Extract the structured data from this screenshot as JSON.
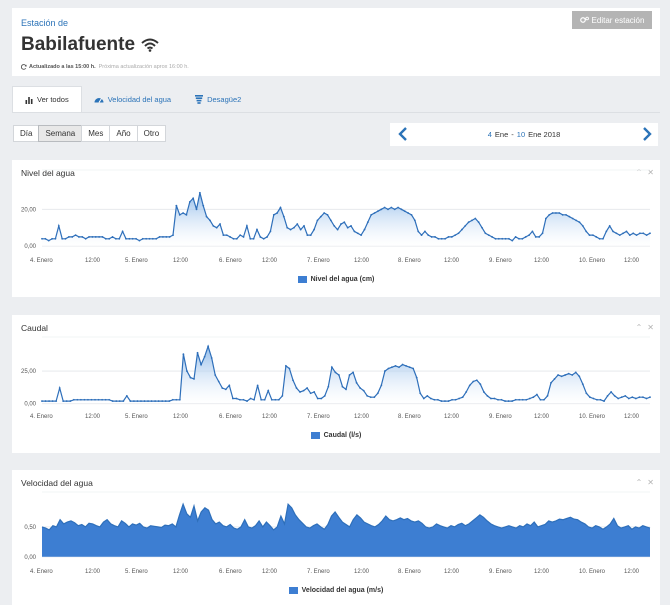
{
  "header": {
    "station_label": "Estación de",
    "station_name": "Babilafuente",
    "updated_text": "Actualizado a las 15:00 h.",
    "next_update_text": "Próxima actualización aprox 16:00 h.",
    "edit_button_label": "Editar estación"
  },
  "tabs": [
    {
      "label": "Ver todos",
      "icon": "bar-chart-icon",
      "active": true
    },
    {
      "label": "Velocidad del agua",
      "icon": "gauge-icon",
      "active": false
    },
    {
      "label": "Desagüe2",
      "icon": "drain-icon",
      "active": false
    }
  ],
  "periods": [
    {
      "label": "Día",
      "active": false
    },
    {
      "label": "Semana",
      "active": true
    },
    {
      "label": "Mes",
      "active": false
    },
    {
      "label": "Año",
      "active": false
    },
    {
      "label": "Otro",
      "active": false
    }
  ],
  "date_range": {
    "start_day": "4",
    "start_month": "Ene",
    "separator": "-",
    "end_day": "10",
    "end_month_year": "Ene 2018"
  },
  "colors": {
    "accent": "#2b73b8",
    "series_line": "#2e6fba",
    "series_fill": "#3d7ed2",
    "panel_bg": "#ffffff",
    "page_bg": "#eceef1"
  },
  "chart_data": [
    {
      "type": "area",
      "title": "Nivel del agua",
      "series_name": "Nivel del agua (cm)",
      "x_labels": [
        "4. Enero",
        "12:00",
        "5. Enero",
        "12:00",
        "6. Enero",
        "12:00",
        "7. Enero",
        "12:00",
        "8. Enero",
        "12:00",
        "9. Enero",
        "12:00",
        "10. Enero",
        "12:00"
      ],
      "y_ticks": [
        "0,00",
        "20,00"
      ],
      "y_tick_values": [
        0,
        20
      ],
      "ylim": [
        -1,
        37
      ],
      "fill_style": "gradient",
      "markers": true,
      "values": [
        4,
        4,
        3,
        4,
        4,
        11,
        4,
        4,
        5,
        5,
        6,
        5,
        5,
        4,
        5,
        5,
        5,
        5,
        5,
        4,
        4,
        5,
        4,
        4,
        8,
        4,
        4,
        4,
        4,
        3,
        4,
        4,
        4,
        4,
        4,
        5,
        5,
        5,
        5,
        6,
        22,
        17,
        18,
        17,
        24,
        26,
        20,
        29,
        22,
        16,
        14,
        11,
        10,
        12,
        6,
        6,
        5,
        4,
        4,
        6,
        5,
        11,
        4,
        4,
        9,
        5,
        4,
        5,
        8,
        17,
        18,
        21,
        16,
        10,
        9,
        10,
        12,
        9,
        11,
        6,
        6,
        9,
        14,
        16,
        18,
        17,
        14,
        11,
        9,
        12,
        13,
        10,
        11,
        8,
        7,
        6,
        9,
        13,
        17,
        18,
        19,
        20,
        21,
        20,
        21,
        20,
        21,
        20,
        19,
        18,
        17,
        14,
        8,
        6,
        8,
        6,
        5,
        5,
        4,
        4,
        4,
        5,
        5,
        6,
        7,
        9,
        11,
        13,
        14,
        15,
        13,
        10,
        7,
        6,
        5,
        4,
        4,
        4,
        4,
        4,
        3,
        5,
        4,
        4,
        5,
        6,
        8,
        5,
        5,
        7,
        15,
        17,
        18,
        18,
        18,
        17,
        17,
        16,
        15,
        14,
        13,
        11,
        8,
        6,
        6,
        5,
        4,
        4,
        8,
        11,
        8,
        7,
        6,
        7,
        8,
        6,
        7,
        6,
        7,
        7,
        6,
        7
      ]
    },
    {
      "type": "area",
      "title": "Caudal",
      "series_name": "Caudal (l/s)",
      "x_labels": [
        "4. Enero",
        "12:00",
        "5. Enero",
        "12:00",
        "6. Enero",
        "12:00",
        "7. Enero",
        "12:00",
        "8. Enero",
        "12:00",
        "9. Enero",
        "12:00",
        "10. Enero",
        "12:00"
      ],
      "y_ticks": [
        "0,00",
        "25,00"
      ],
      "y_tick_values": [
        0,
        25
      ],
      "ylim": [
        -1,
        45
      ],
      "fill_style": "gradient",
      "markers": true,
      "values": [
        2,
        2,
        2,
        2,
        2,
        12,
        2,
        2,
        2,
        3,
        3,
        3,
        3,
        3,
        3,
        3,
        3,
        3,
        3,
        3,
        2,
        2,
        2,
        2,
        6,
        2,
        2,
        2,
        2,
        2,
        2,
        2,
        2,
        2,
        2,
        2,
        2,
        3,
        3,
        3,
        38,
        25,
        20,
        19,
        39,
        30,
        36,
        44,
        35,
        22,
        17,
        12,
        11,
        14,
        4,
        4,
        3,
        3,
        2,
        4,
        3,
        14,
        3,
        3,
        10,
        3,
        3,
        3,
        6,
        29,
        27,
        18,
        12,
        9,
        10,
        12,
        8,
        9,
        4,
        4,
        6,
        13,
        28,
        24,
        22,
        13,
        11,
        22,
        24,
        16,
        12,
        10,
        6,
        5,
        5,
        8,
        14,
        25,
        27,
        28,
        29,
        28,
        30,
        29,
        28,
        27,
        20,
        8,
        4,
        6,
        4,
        3,
        3,
        2,
        2,
        2,
        3,
        3,
        4,
        5,
        9,
        14,
        17,
        18,
        15,
        9,
        6,
        4,
        4,
        3,
        3,
        2,
        2,
        2,
        3,
        3,
        3,
        3,
        4,
        5,
        7,
        3,
        3,
        6,
        16,
        19,
        22,
        21,
        22,
        23,
        22,
        24,
        21,
        15,
        8,
        5,
        4,
        3,
        3,
        2,
        6,
        9,
        6,
        4,
        5,
        6,
        4,
        5,
        4,
        5,
        5,
        4,
        5
      ]
    },
    {
      "type": "area",
      "title": "Velocidad del agua",
      "series_name": "Velocidad del agua (m/s)",
      "x_labels": [
        "4. Enero",
        "12:00",
        "5. Enero",
        "12:00",
        "6. Enero",
        "12:00",
        "7. Enero",
        "12:00",
        "8. Enero",
        "12:00",
        "9. Enero",
        "12:00",
        "10. Enero",
        "12:00"
      ],
      "y_ticks": [
        "0,00",
        "0,50"
      ],
      "y_tick_values": [
        0,
        0.5
      ],
      "ylim": [
        -0.02,
        0.95
      ],
      "fill_style": "solid",
      "markers": false,
      "values": [
        0.5,
        0.48,
        0.45,
        0.52,
        0.5,
        0.62,
        0.55,
        0.58,
        0.6,
        0.57,
        0.52,
        0.54,
        0.5,
        0.56,
        0.55,
        0.52,
        0.5,
        0.58,
        0.62,
        0.55,
        0.52,
        0.5,
        0.6,
        0.56,
        0.5,
        0.55,
        0.53,
        0.56,
        0.5,
        0.48,
        0.52,
        0.51,
        0.5,
        0.49,
        0.53,
        0.52,
        0.55,
        0.5,
        0.7,
        0.88,
        0.72,
        0.66,
        0.85,
        0.6,
        0.75,
        0.82,
        0.78,
        0.62,
        0.55,
        0.58,
        0.52,
        0.5,
        0.54,
        0.48,
        0.46,
        0.5,
        0.62,
        0.5,
        0.48,
        0.52,
        0.6,
        0.5,
        0.58,
        0.52,
        0.45,
        0.5,
        0.68,
        0.55,
        0.88,
        0.82,
        0.7,
        0.62,
        0.56,
        0.5,
        0.48,
        0.52,
        0.55,
        0.5,
        0.46,
        0.54,
        0.68,
        0.75,
        0.66,
        0.58,
        0.54,
        0.5,
        0.62,
        0.7,
        0.65,
        0.58,
        0.55,
        0.52,
        0.5,
        0.54,
        0.6,
        0.68,
        0.62,
        0.6,
        0.62,
        0.65,
        0.62,
        0.64,
        0.6,
        0.58,
        0.6,
        0.56,
        0.5,
        0.48,
        0.5,
        0.55,
        0.52,
        0.5,
        0.48,
        0.52,
        0.5,
        0.54,
        0.56,
        0.52,
        0.55,
        0.6,
        0.65,
        0.7,
        0.66,
        0.6,
        0.55,
        0.52,
        0.5,
        0.48,
        0.5,
        0.52,
        0.5,
        0.48,
        0.52,
        0.5,
        0.55,
        0.52,
        0.58,
        0.5,
        0.52,
        0.54,
        0.6,
        0.58,
        0.6,
        0.63,
        0.62,
        0.64,
        0.66,
        0.63,
        0.62,
        0.58,
        0.55,
        0.5,
        0.48,
        0.52,
        0.5,
        0.46,
        0.5,
        0.55,
        0.64,
        0.52,
        0.48,
        0.5,
        0.52,
        0.46,
        0.5,
        0.48,
        0.52,
        0.5,
        0.48
      ]
    }
  ]
}
